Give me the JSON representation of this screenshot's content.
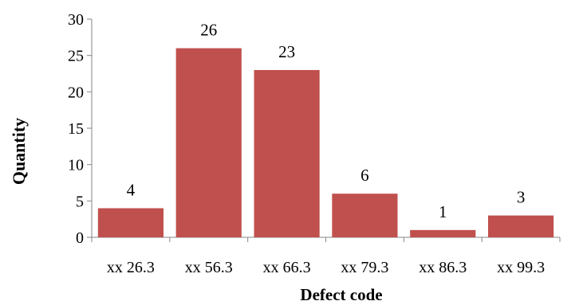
{
  "chart_data": {
    "type": "bar",
    "categories": [
      "xx 26.3",
      "xx 56.3",
      "xx 66.3",
      "xx 79.3",
      "xx 86.3",
      "xx 99.3"
    ],
    "values": [
      4,
      26,
      23,
      6,
      1,
      3
    ],
    "data_labels": [
      "4",
      "26",
      "23",
      "6",
      "1",
      "3"
    ],
    "title": "",
    "xlabel": "Defect code",
    "ylabel": "Quantity",
    "ylim": [
      0,
      30
    ],
    "yticks": [
      0,
      5,
      10,
      15,
      20,
      25,
      30
    ],
    "ytick_labels": [
      "0",
      "5",
      "10",
      "15",
      "20",
      "25",
      "30"
    ],
    "grid": false,
    "legend": "none",
    "bar_color": "#c0504d",
    "axis_color": "#868686"
  }
}
